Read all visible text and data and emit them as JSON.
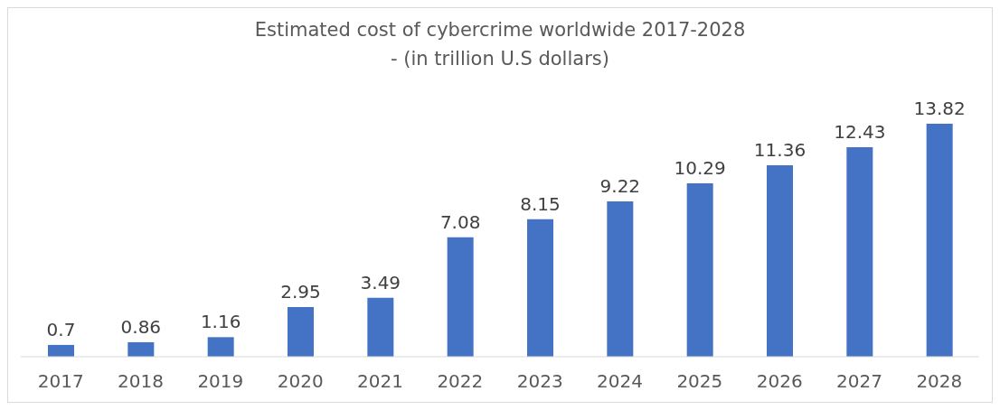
{
  "chart_data": {
    "type": "bar",
    "title": "Estimated cost of cybercrime worldwide 2017-2028\n- (in trillion U.S dollars)",
    "categories": [
      "2017",
      "2018",
      "2019",
      "2020",
      "2021",
      "2022",
      "2023",
      "2024",
      "2025",
      "2026",
      "2027",
      "2028"
    ],
    "values": [
      0.7,
      0.86,
      1.16,
      2.95,
      3.49,
      7.08,
      8.15,
      9.22,
      10.29,
      11.36,
      12.43,
      13.82
    ],
    "color": "#4472c4",
    "data_labels": true,
    "grid": false,
    "legend": false
  }
}
